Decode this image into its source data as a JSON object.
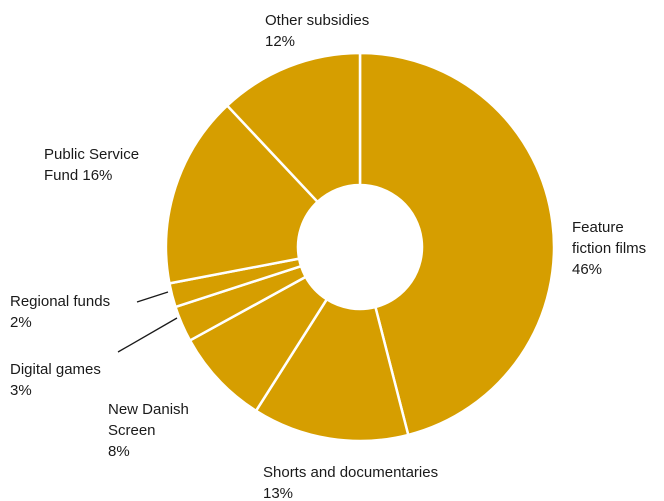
{
  "chart_data": {
    "type": "pie",
    "style": "donut",
    "slice_color": "#D69E00",
    "separator_color": "#FFFFFF",
    "slices": [
      {
        "lines": [
          "Feature",
          "fiction films",
          "46%"
        ],
        "value": 46,
        "side": "right"
      },
      {
        "lines": [
          "Shorts and documentaries",
          "13%"
        ],
        "value": 13,
        "side": "bottom"
      },
      {
        "lines": [
          "New Danish",
          "Screen",
          "8%"
        ],
        "value": 8,
        "side": "left"
      },
      {
        "lines": [
          "Digital games",
          "3%"
        ],
        "value": 3,
        "side": "left"
      },
      {
        "lines": [
          "Regional funds",
          "2%"
        ],
        "value": 2,
        "side": "left"
      },
      {
        "lines": [
          "Public Service",
          "Fund 16%"
        ],
        "value": 16,
        "side": "left"
      },
      {
        "lines": [
          "Other subsidies",
          "12%"
        ],
        "value": 12,
        "side": "top"
      }
    ]
  }
}
